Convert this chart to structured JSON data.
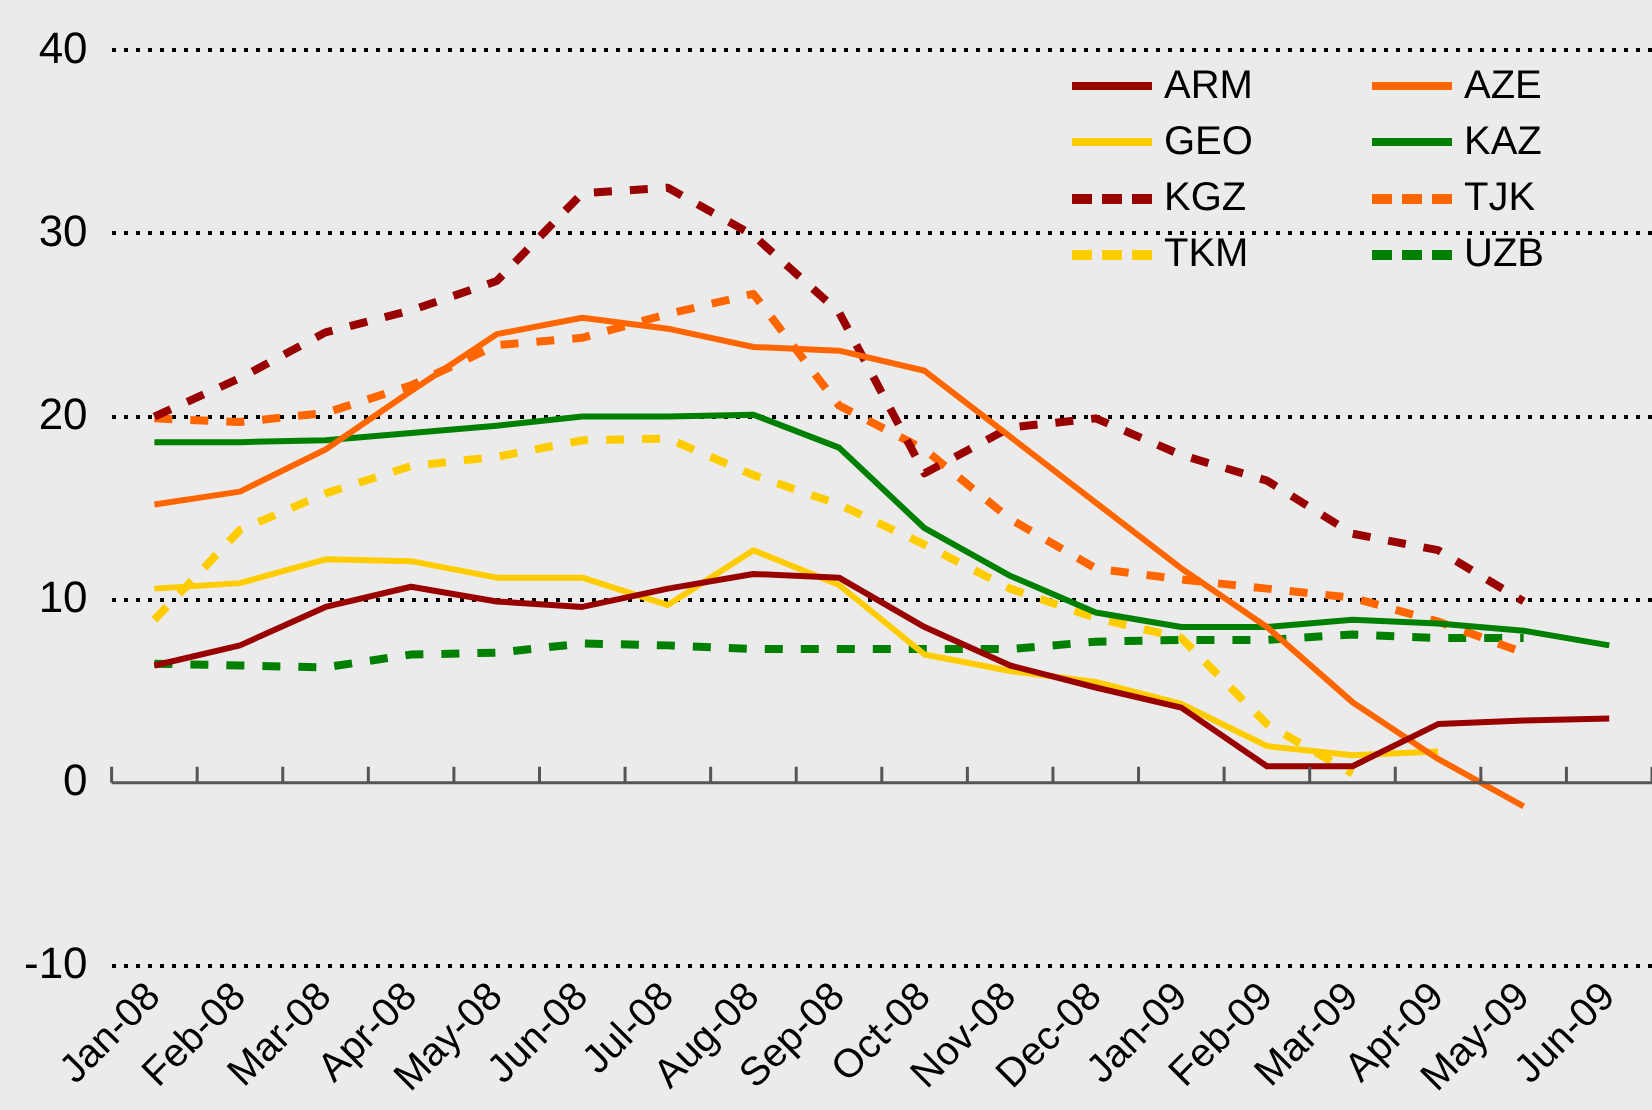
{
  "chart_data": {
    "type": "line",
    "categories": [
      "Jan-08",
      "Feb-08",
      "Mar-08",
      "Apr-08",
      "May-08",
      "Jun-08",
      "Jul-08",
      "Aug-08",
      "Sep-08",
      "Oct-08",
      "Nov-08",
      "Dec-08",
      "Jan-09",
      "Feb-09",
      "Mar-09",
      "Apr-09",
      "May-09",
      "Jun-09"
    ],
    "ylim": [
      -10,
      40
    ],
    "yticks": [
      -10,
      0,
      10,
      20,
      30,
      40
    ],
    "grid": "y",
    "legend": "top right",
    "marker": "none",
    "series": [
      {
        "name": "ARM",
        "color": "#990000",
        "line_style": "solid",
        "values": [
          6.4,
          7.5,
          9.6,
          10.7,
          9.9,
          9.6,
          10.6,
          11.4,
          11.2,
          8.5,
          6.4,
          5.2,
          4.1,
          0.9,
          0.9,
          3.2,
          3.4,
          3.5
        ]
      },
      {
        "name": "AZE",
        "color": "#ff6600",
        "line_style": "solid",
        "values": [
          15.2,
          15.9,
          18.2,
          21.4,
          24.5,
          25.4,
          24.8,
          23.8,
          23.6,
          22.5,
          18.9,
          15.3,
          11.7,
          8.5,
          4.4,
          1.3,
          -1.3,
          null
        ]
      },
      {
        "name": "GEO",
        "color": "#ffcc00",
        "line_style": "solid",
        "values": [
          10.6,
          10.9,
          12.2,
          12.1,
          11.2,
          11.2,
          9.7,
          12.7,
          10.8,
          7.0,
          6.1,
          5.5,
          4.3,
          2.0,
          1.5,
          1.7,
          null,
          null
        ]
      },
      {
        "name": "KAZ",
        "color": "#008000",
        "line_style": "solid",
        "values": [
          18.6,
          18.6,
          18.7,
          19.1,
          19.5,
          20.0,
          20.0,
          20.1,
          18.3,
          13.9,
          11.3,
          9.3,
          8.5,
          8.5,
          8.9,
          8.7,
          8.3,
          7.5
        ]
      },
      {
        "name": "KGZ",
        "color": "#990000",
        "line_style": "dashed",
        "values": [
          20.0,
          22.1,
          24.6,
          25.8,
          27.4,
          32.2,
          32.5,
          29.9,
          25.7,
          16.9,
          19.4,
          19.9,
          17.9,
          16.5,
          13.6,
          12.7,
          9.9,
          null
        ]
      },
      {
        "name": "TJK",
        "color": "#ff6600",
        "line_style": "dashed",
        "values": [
          19.9,
          19.7,
          20.2,
          21.7,
          23.9,
          24.3,
          25.6,
          26.7,
          20.6,
          18.2,
          14.4,
          11.7,
          11.1,
          10.6,
          10.1,
          8.8,
          7.1,
          null
        ]
      },
      {
        "name": "TKM",
        "color": "#ffcc00",
        "line_style": "dashed",
        "values": [
          8.9,
          13.8,
          15.8,
          17.3,
          17.8,
          18.7,
          18.8,
          16.8,
          15.2,
          13.0,
          10.6,
          9.0,
          7.9,
          3.2,
          0.5,
          null,
          null,
          null
        ]
      },
      {
        "name": "UZB",
        "color": "#008000",
        "line_style": "dashed",
        "values": [
          6.5,
          6.4,
          6.3,
          7.0,
          7.1,
          7.6,
          7.5,
          7.3,
          7.3,
          7.3,
          7.3,
          7.7,
          7.8,
          7.8,
          8.1,
          7.9,
          7.9,
          null
        ]
      }
    ]
  }
}
